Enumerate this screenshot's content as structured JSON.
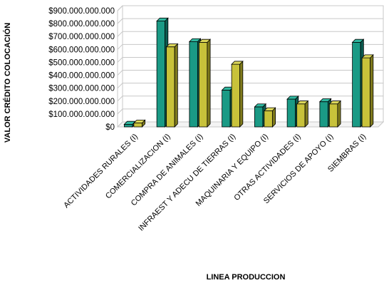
{
  "chart_data": {
    "type": "bar",
    "title": "",
    "xlabel": "LINEA PRODUCCION",
    "ylabel": "VALOR CRÉDITO COLOCACIÓN",
    "categories": [
      "ACTIVIDADES RURALES (I)",
      "COMERCIALIZACION (I)",
      "COMPRA DE ANIMALES (I)",
      "INFRAEST Y ADECU DE TIERRAS (I)",
      "MAQUINARIA Y EQUIPO (I)",
      "OTRAS ACTIVIDADES (I)",
      "SERVICIOS DE APOYO  (I)",
      "SIEMBRAS (I)"
    ],
    "series": [
      {
        "values": [
          20000000000,
          820000000000,
          660000000000,
          285000000000,
          155000000000,
          215000000000,
          195000000000,
          655000000000
        ]
      },
      {
        "values": [
          30000000000,
          620000000000,
          655000000000,
          485000000000,
          125000000000,
          178000000000,
          178000000000,
          535000000000
        ]
      }
    ],
    "ylim": [
      0,
      900000000000
    ],
    "yticks": [
      "$0",
      "$100.000.000.000",
      "$200.000.000.000",
      "$300.000.000.000",
      "$400.000.000.000",
      "$500.000.000.000",
      "$600.000.000.000",
      "$700.000.000.000",
      "$800.000.000.000",
      "$900.000.000.000"
    ],
    "grid": true,
    "legend": "none",
    "colors": {
      "series1_front": "#1a9a85",
      "series1_side": "#0c5c50",
      "series1_top": "#2fb8a0",
      "series2_front": "#c8c23a",
      "series2_side": "#7f7a1c",
      "series2_top": "#dcd75a",
      "grid": "#c8c8c8"
    }
  }
}
